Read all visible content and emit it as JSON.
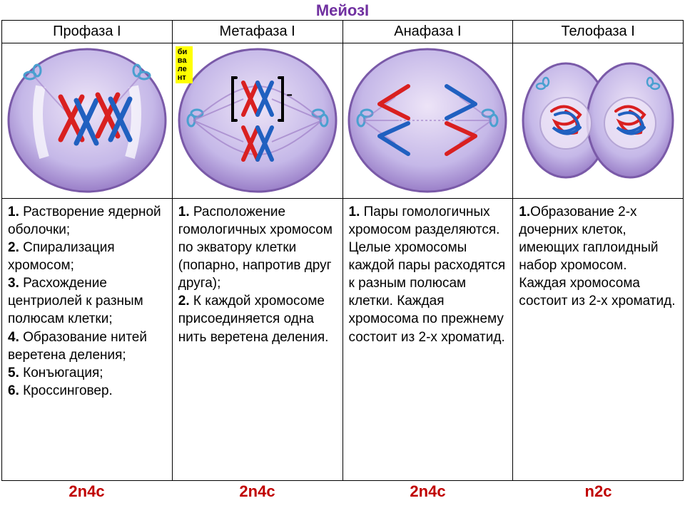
{
  "title": {
    "label": "Мейоз",
    "suffix": "I"
  },
  "bivalent_label": "би\nва\nле\nнт",
  "colors": {
    "cell_fill": "#c5b8e8",
    "cell_stroke": "#7a5aa8",
    "cell_inner": "#ede4f7",
    "chrom_red": "#d92020",
    "chrom_blue": "#2060c0",
    "spindle": "#a080c8",
    "centriole": "#4aa0d0",
    "nuclear_env": "#d0c4e8",
    "ploidy": "#c00000",
    "title": "#7030a0"
  },
  "phases": [
    {
      "name": "Профаза I",
      "ploidy": "2n4c",
      "description": "<span class='bold'>1.</span> Растворение ядерной оболочки;<br><span class='bold'>2.</span> Спирализация хромосом;<br><span class='bold'>3.</span> Расхождение центриолей к разным полюсам клетки;<br><span class='bold'>4.</span> Образование нитей веретена деления;<br><span class='bold'>5.</span> Конъюгация;<br><span class='bold'>6.</span> Кроссинговер."
    },
    {
      "name": "Метафаза I",
      "ploidy": "2n4c",
      "description": "<span class='bold'>1.</span> Расположение гомологичных хромосом по экватору клетки (попарно, напротив друг друга);<br><span class='bold'>2.</span> К каждой хромосоме присоединяется одна нить веретена деления."
    },
    {
      "name": "Анафаза I",
      "ploidy": "2n4c",
      "description": "<span class='bold'>1.</span> Пары гомологичных хромосом разделяются. Целые хромосомы каждой пары расходятся к разным полюсам клетки. Каждая хромосома по прежнему состоит из 2-х хроматид."
    },
    {
      "name": "Телофаза I",
      "ploidy": "n2c",
      "description": "<span class='bold'>1.</span>Образование 2-х дочерних клеток, имеющих гаплоидный набор хромосом. Каждая хромосома состоит из 2-х хроматид."
    }
  ]
}
